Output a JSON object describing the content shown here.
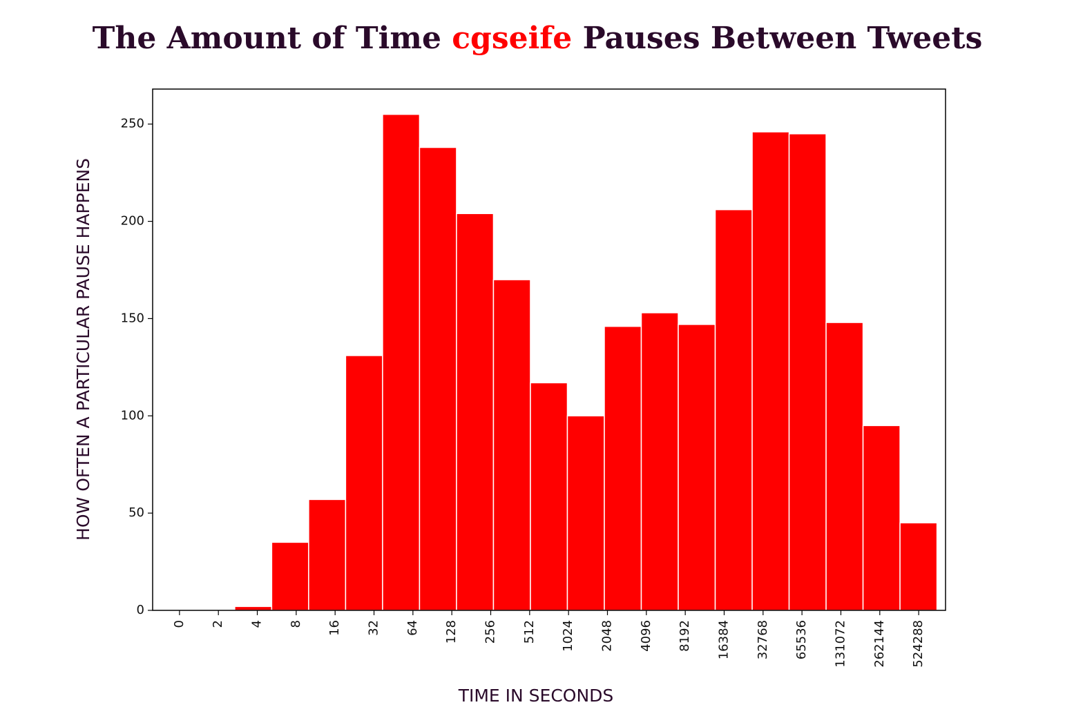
{
  "chart_data": {
    "type": "histogram",
    "title": [
      "The Amount of Time",
      "cgseife",
      "Pauses Between Tweets"
    ],
    "title_color": "#2a0a2a",
    "highlight_color": "#ff0000",
    "xlabel": "TIME IN SECONDS",
    "ylabel": "HOW OFTEN A PARTICULAR PAUSE HAPPENS",
    "bins": [
      -0.48,
      0.47,
      1.42,
      2.37,
      3.32,
      4.27,
      5.22,
      6.17,
      7.12,
      8.07,
      9.02,
      9.97,
      10.92,
      11.87,
      12.82,
      13.77,
      14.72,
      15.67,
      16.62,
      17.57,
      18.52,
      19.47
    ],
    "values": [
      0,
      0,
      2,
      35,
      57,
      131,
      255,
      238,
      204,
      170,
      117,
      100,
      146,
      153,
      147,
      206,
      246,
      245,
      148,
      95,
      45
    ],
    "color": "#ff0000",
    "xlim": [
      -0.69,
      19.69
    ],
    "xticks": [
      0,
      {
        "value": 1,
        "label": "2"
      },
      {
        "value": 2,
        "label": "4"
      },
      {
        "value": 3,
        "label": "8"
      },
      {
        "value": 4,
        "label": "16"
      },
      {
        "value": 5,
        "label": "32"
      },
      {
        "value": 6,
        "label": "64"
      },
      {
        "value": 7,
        "label": "128"
      },
      {
        "value": 8,
        "label": "256"
      },
      {
        "value": 9,
        "label": "512"
      },
      {
        "value": 10,
        "label": "1024"
      },
      {
        "value": 11,
        "label": "2048"
      },
      {
        "value": 12,
        "label": "4096"
      },
      {
        "value": 13,
        "label": "8192"
      },
      {
        "value": 14,
        "label": "16384"
      },
      {
        "value": 15,
        "label": "32768"
      },
      {
        "value": 16,
        "label": "65536"
      },
      {
        "value": 17,
        "label": "131072"
      },
      {
        "value": 18,
        "label": "262144"
      },
      {
        "value": 19,
        "label": "524288"
      }
    ],
    "ylim": [
      0,
      268
    ],
    "yticks": [
      0,
      50,
      100,
      150,
      200,
      250
    ]
  }
}
